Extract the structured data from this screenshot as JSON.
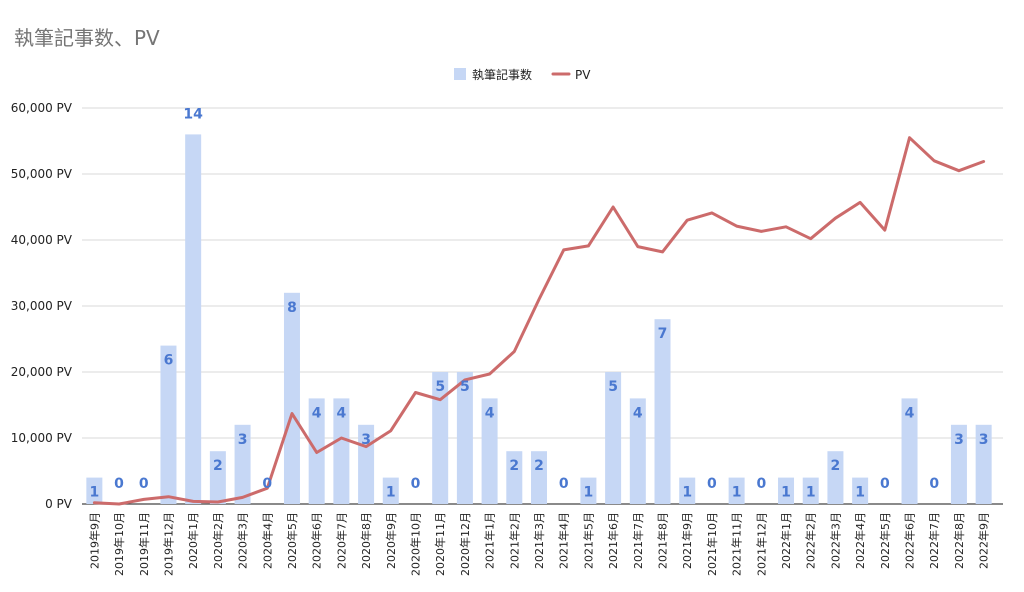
{
  "chart_data": {
    "type": "bar",
    "title": "執筆記事数、PV",
    "categories": [
      "2019年9月",
      "2019年10月",
      "2019年11月",
      "2019年12月",
      "2020年1月",
      "2020年2月",
      "2020年3月",
      "2020年4月",
      "2020年5月",
      "2020年6月",
      "2020年7月",
      "2020年8月",
      "2020年9月",
      "2020年10月",
      "2020年11月",
      "2020年12月",
      "2021年1月",
      "2021年2月",
      "2021年3月",
      "2021年4月",
      "2021年5月",
      "2021年6月",
      "2021年7月",
      "2021年8月",
      "2021年9月",
      "2021年10月",
      "2021年11月",
      "2021年12月",
      "2022年1月",
      "2022年2月",
      "2022年3月",
      "2022年4月",
      "2022年5月",
      "2022年6月",
      "2022年7月",
      "2022年8月",
      "2022年9月"
    ],
    "series": [
      {
        "name": "執筆記事数",
        "type": "bar",
        "color": "#c6d7f5",
        "label_color": "#4a78d0",
        "values": [
          1,
          0,
          0,
          6,
          14,
          2,
          3,
          0,
          8,
          4,
          4,
          3,
          1,
          0,
          5,
          5,
          4,
          2,
          2,
          0,
          1,
          5,
          4,
          7,
          1,
          0,
          1,
          0,
          1,
          1,
          2,
          1,
          0,
          4,
          0,
          3,
          3
        ]
      },
      {
        "name": "PV",
        "type": "line",
        "color": "#cc6b6b",
        "values": [
          200,
          0,
          700,
          1100,
          400,
          300,
          1000,
          2400,
          13700,
          7800,
          10000,
          8700,
          11100,
          16900,
          15800,
          18800,
          19700,
          23100,
          31000,
          38500,
          39100,
          45000,
          39000,
          38200,
          43000,
          44100,
          42100,
          41300,
          42000,
          40200,
          43300,
          45700,
          41500,
          55500,
          52000,
          50500,
          51900
        ]
      }
    ],
    "y_tick_labels": [
      "0 PV",
      "10,000 PV",
      "20,000 PV",
      "30,000 PV",
      "40,000 PV",
      "50,000 PV",
      "60,000 PV"
    ],
    "ylim": [
      0,
      60000
    ],
    "bar_scale_max": 15,
    "grid": true,
    "legend": "top-center"
  }
}
